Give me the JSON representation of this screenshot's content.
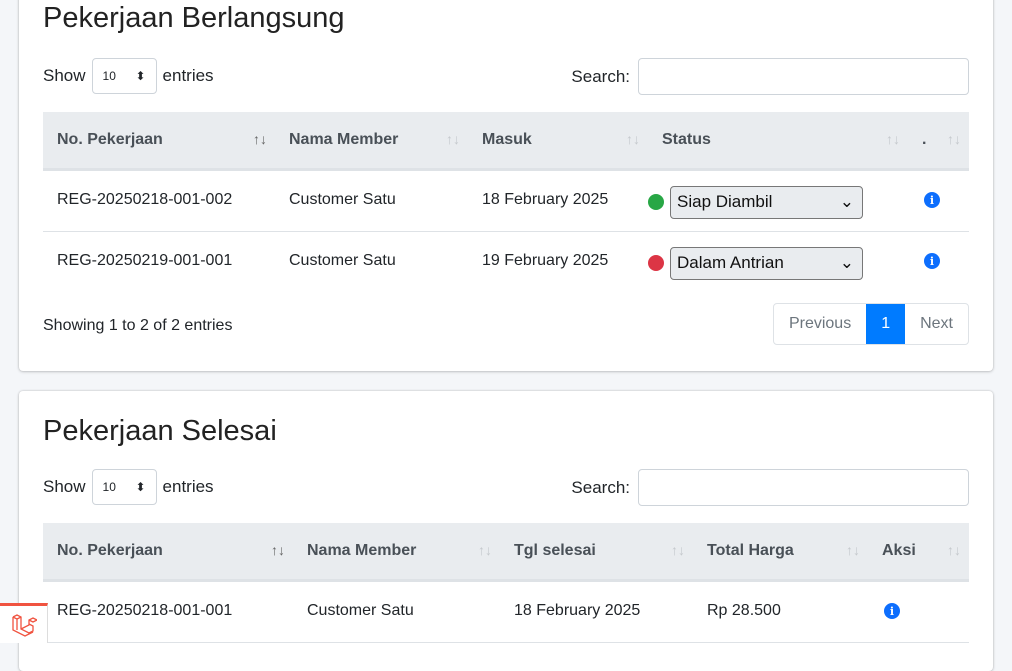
{
  "ongoing": {
    "title": "Pekerjaan Berlangsung",
    "show_label": "Show",
    "entries_value": "10",
    "entries_label": "entries",
    "search_label": "Search:",
    "search_value": "",
    "columns": [
      "No. Pekerjaan",
      "Nama Member",
      "Masuk",
      "Status",
      "."
    ],
    "rows": [
      {
        "no": "REG-20250218-001-002",
        "member": "Customer Satu",
        "date": "18 February 2025",
        "status": "Siap Diambil",
        "status_color": "#28a745"
      },
      {
        "no": "REG-20250219-001-001",
        "member": "Customer Satu",
        "date": "19 February 2025",
        "status": "Dalam Antrian",
        "status_color": "#dc3545"
      }
    ],
    "info": "Showing 1 to 2 of 2 entries",
    "pagination": {
      "previous": "Previous",
      "page": "1",
      "next": "Next"
    }
  },
  "done": {
    "title": "Pekerjaan Selesai",
    "show_label": "Show",
    "entries_value": "10",
    "entries_label": "entries",
    "search_label": "Search:",
    "search_value": "",
    "columns": [
      "No. Pekerjaan",
      "Nama Member",
      "Tgl selesai",
      "Total Harga",
      "Aksi"
    ],
    "rows": [
      {
        "no": "REG-20250218-001-001",
        "member": "Customer Satu",
        "date": "18 February 2025",
        "total": "Rp 28.500"
      }
    ]
  },
  "icons": {
    "info": "info-circle-icon",
    "sort": "sort-arrows-icon",
    "logo": "laravel-logo"
  },
  "colors": {
    "accent": "#007bff",
    "ready": "#28a745",
    "queued": "#dc3545"
  }
}
